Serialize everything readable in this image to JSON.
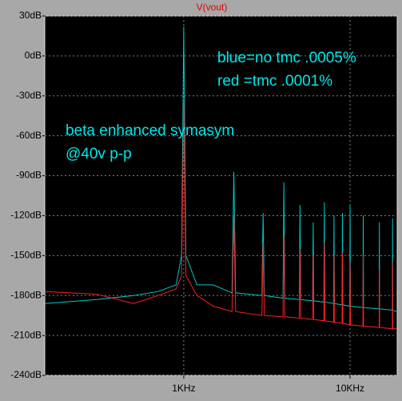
{
  "chart_data": {
    "type": "line",
    "title": "V(vout)",
    "x": [
      146,
      300,
      500,
      700,
      900,
      970,
      1000,
      1030,
      1200,
      1500,
      1950,
      2000,
      2050,
      2950,
      3000,
      3050,
      3950,
      4000,
      4050,
      4950,
      5000,
      5050,
      5950,
      6000,
      6050,
      6950,
      7000,
      7050,
      7950,
      8000,
      8050,
      8950,
      9000,
      9050,
      9950,
      10000,
      10050,
      11950,
      12000,
      12050,
      14950,
      15000,
      15050,
      17950,
      18000,
      18050,
      19000
    ],
    "series": [
      {
        "color": "#00c8c8",
        "values": [
          -186,
          -183,
          -180,
          -177,
          -172,
          -150,
          22,
          -150,
          -172,
          -172,
          -178,
          -87,
          -178,
          -180,
          -118,
          -180,
          -182,
          -95,
          -182,
          -183,
          -112,
          -183,
          -184,
          -125,
          -184,
          -185,
          -110,
          -185,
          -186,
          -120,
          -186,
          -187,
          -118,
          -187,
          -188,
          -112,
          -188,
          -189,
          -120,
          -189,
          -190,
          -125,
          -190,
          -191,
          -122,
          -191,
          -192
        ]
      },
      {
        "color": "#ff2020",
        "values": [
          -177,
          -179,
          -186,
          -180,
          -175,
          -165,
          -35,
          -165,
          -180,
          -188,
          -192,
          -120,
          -192,
          -195,
          -140,
          -195,
          -196,
          -135,
          -196,
          -197,
          -145,
          -197,
          -198,
          -150,
          -198,
          -199,
          -140,
          -199,
          -200,
          -150,
          -200,
          -201,
          -148,
          -201,
          -202,
          -155,
          -202,
          -203,
          -150,
          -203,
          -204,
          -160,
          -204,
          -205,
          -155,
          -205,
          -205
        ]
      }
    ],
    "xlog": true,
    "xlim": [
      146,
      19200
    ],
    "xticks": [
      {
        "value": 1000,
        "label": "1KHz"
      },
      {
        "value": 10000,
        "label": "10KHz"
      }
    ],
    "ylim": [
      -240,
      30
    ],
    "yticks": [
      {
        "value": 30,
        "label": "30dB"
      },
      {
        "value": 0,
        "label": "0dB"
      },
      {
        "value": -30,
        "label": "-30dB"
      },
      {
        "value": -60,
        "label": "-60dB"
      },
      {
        "value": -90,
        "label": "-90dB"
      },
      {
        "value": -120,
        "label": "-120dB"
      },
      {
        "value": -150,
        "label": "-150dB"
      },
      {
        "value": -180,
        "label": "-180dB"
      },
      {
        "value": -210,
        "label": "-210dB"
      },
      {
        "value": -240,
        "label": "-240dB"
      }
    ],
    "grid": true,
    "annotations": [
      "blue=no tmc .0005%",
      "red =tmc .0001%",
      "beta enhanced symasym",
      "@40v p-p"
    ]
  }
}
